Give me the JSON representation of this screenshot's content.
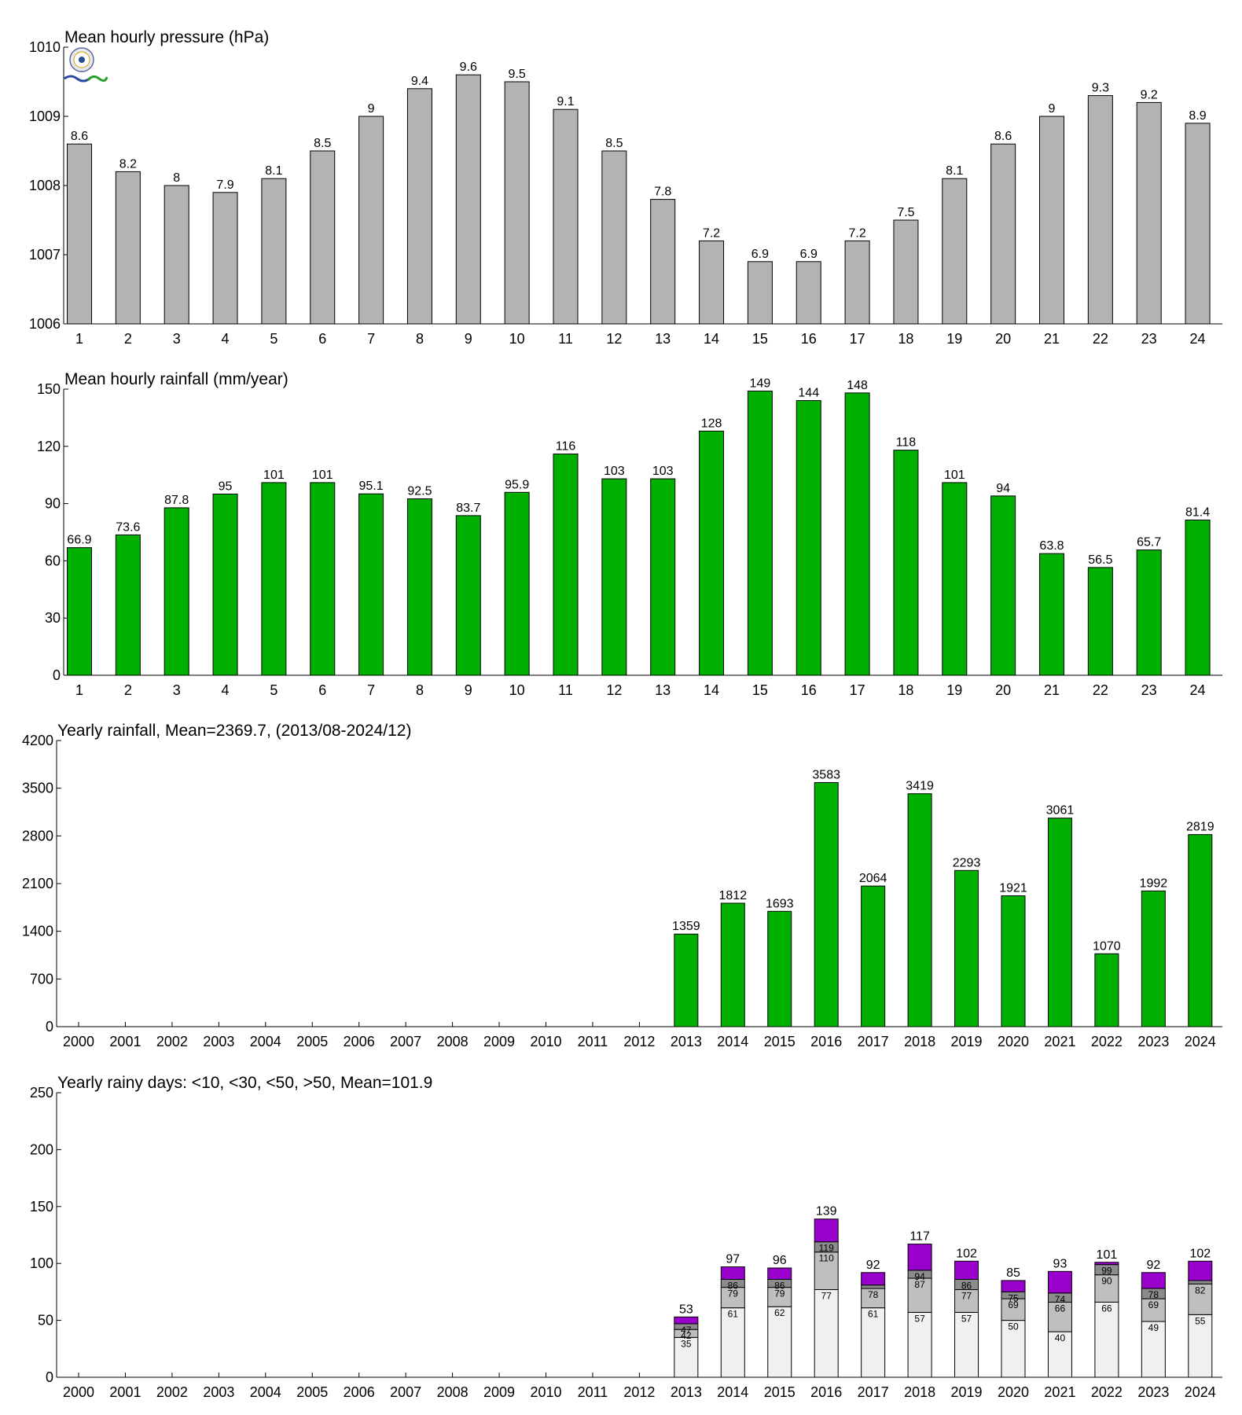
{
  "chart_data": [
    {
      "type": "bar",
      "title": "Mean hourly pressure (hPa)",
      "categories": [
        "1",
        "2",
        "3",
        "4",
        "5",
        "6",
        "7",
        "8",
        "9",
        "10",
        "11",
        "12",
        "13",
        "14",
        "15",
        "16",
        "17",
        "18",
        "19",
        "20",
        "21",
        "22",
        "23",
        "24"
      ],
      "values": [
        1008.6,
        1008.2,
        1008.0,
        1007.9,
        1008.1,
        1008.5,
        1009.0,
        1009.4,
        1009.6,
        1009.5,
        1009.1,
        1008.5,
        1007.8,
        1007.2,
        1006.9,
        1006.9,
        1007.2,
        1007.5,
        1008.1,
        1008.6,
        1009.0,
        1009.3,
        1009.2,
        1008.9
      ],
      "labels": [
        "8.6",
        "8.2",
        "8",
        "7.9",
        "8.1",
        "8.5",
        "9",
        "9.4",
        "9.6",
        "9.5",
        "9.1",
        "8.5",
        "7.8",
        "7.2",
        "6.9",
        "6.9",
        "7.2",
        "7.5",
        "8.1",
        "8.6",
        "9",
        "9.3",
        "9.2",
        "8.9"
      ],
      "ylim": [
        1006,
        1010
      ],
      "yticks": [
        "1006",
        "1007",
        "1008",
        "1009",
        "1010"
      ],
      "color": "#b3b3b3"
    },
    {
      "type": "bar",
      "title": "Mean hourly rainfall (mm/year)",
      "categories": [
        "1",
        "2",
        "3",
        "4",
        "5",
        "6",
        "7",
        "8",
        "9",
        "10",
        "11",
        "12",
        "13",
        "14",
        "15",
        "16",
        "17",
        "18",
        "19",
        "20",
        "21",
        "22",
        "23",
        "24"
      ],
      "values": [
        66.9,
        73.6,
        87.8,
        95,
        101,
        101,
        95.1,
        92.5,
        83.7,
        95.9,
        116,
        103,
        103,
        128,
        149,
        144,
        148,
        118,
        101,
        94,
        63.8,
        56.5,
        65.7,
        81.4
      ],
      "labels": [
        "66.9",
        "73.6",
        "87.8",
        "95",
        "101",
        "101",
        "95.1",
        "92.5",
        "83.7",
        "95.9",
        "116",
        "103",
        "103",
        "128",
        "149",
        "144",
        "148",
        "118",
        "101",
        "94",
        "63.8",
        "56.5",
        "65.7",
        "81.4"
      ],
      "ylim": [
        0,
        150
      ],
      "yticks": [
        "0",
        "30",
        "60",
        "90",
        "120",
        "150"
      ],
      "color": "#00b000"
    },
    {
      "type": "bar",
      "title": "Yearly rainfall, Mean=2369.7, (2013/08-2024/12)",
      "categories": [
        "2000",
        "2001",
        "2002",
        "2003",
        "2004",
        "2005",
        "2006",
        "2007",
        "2008",
        "2009",
        "2010",
        "2011",
        "2012",
        "2013",
        "2014",
        "2015",
        "2016",
        "2017",
        "2018",
        "2019",
        "2020",
        "2021",
        "2022",
        "2023",
        "2024"
      ],
      "values": [
        null,
        null,
        null,
        null,
        null,
        null,
        null,
        null,
        null,
        null,
        null,
        null,
        null,
        1359,
        1812,
        1693,
        3583,
        2064,
        3419,
        2293,
        1921,
        3061,
        1070,
        1992,
        2819
      ],
      "labels": [
        "",
        "",
        "",
        "",
        "",
        "",
        "",
        "",
        "",
        "",
        "",
        "",
        "",
        "1359",
        "1812",
        "1693",
        "3583",
        "2064",
        "3419",
        "2293",
        "1921",
        "3061",
        "1070",
        "1992",
        "2819"
      ],
      "ylim": [
        0,
        4200
      ],
      "yticks": [
        "0",
        "700",
        "1400",
        "2100",
        "2800",
        "3500",
        "4200"
      ],
      "color": "#00b000"
    },
    {
      "type": "bar",
      "stacked": true,
      "title": "Yearly rainy days: <10, <30, <50, >50, Mean=101.9",
      "categories": [
        "2000",
        "2001",
        "2002",
        "2003",
        "2004",
        "2005",
        "2006",
        "2007",
        "2008",
        "2009",
        "2010",
        "2011",
        "2012",
        "2013",
        "2014",
        "2015",
        "2016",
        "2017",
        "2018",
        "2019",
        "2020",
        "2021",
        "2022",
        "2023",
        "2024"
      ],
      "cumulative": [
        null,
        null,
        null,
        null,
        null,
        null,
        null,
        null,
        null,
        null,
        null,
        null,
        null,
        [
          35,
          42,
          47,
          53
        ],
        [
          61,
          79,
          86,
          97
        ],
        [
          62,
          79,
          86,
          96
        ],
        [
          77,
          110,
          119,
          139
        ],
        [
          61,
          78,
          81,
          92
        ],
        [
          57,
          87,
          94,
          117
        ],
        [
          57,
          77,
          86,
          102
        ],
        [
          50,
          69,
          75,
          85
        ],
        [
          40,
          66,
          74,
          93
        ],
        [
          66,
          90,
          99,
          101
        ],
        [
          49,
          69,
          78,
          92
        ],
        [
          55,
          82,
          85,
          102
        ]
      ],
      "segment_labels": [
        null,
        null,
        null,
        null,
        null,
        null,
        null,
        null,
        null,
        null,
        null,
        null,
        null,
        [
          "35",
          "42",
          "47"
        ],
        [
          "61",
          "79",
          "86"
        ],
        [
          "62",
          "79",
          "86"
        ],
        [
          "77",
          "110",
          "119"
        ],
        [
          "61",
          "78",
          ""
        ],
        [
          "57",
          "87",
          "94"
        ],
        [
          "57",
          "77",
          "86"
        ],
        [
          "50",
          "69",
          "75"
        ],
        [
          "40",
          "66",
          "74"
        ],
        [
          "66",
          "90",
          "99"
        ],
        [
          "49",
          "69",
          "78"
        ],
        [
          "55",
          "82",
          ""
        ]
      ],
      "totals": [
        "",
        "",
        "",
        "",
        "",
        "",
        "",
        "",
        "",
        "",
        "",
        "",
        "",
        "53",
        "97",
        "96",
        "139",
        "92",
        "117",
        "102",
        "85",
        "93",
        "101",
        "92",
        "102"
      ],
      "ylim": [
        0,
        250
      ],
      "yticks": [
        "0",
        "50",
        "100",
        "150",
        "200",
        "250"
      ],
      "segment_colors": [
        "#f0f0f0",
        "#bfbfbf",
        "#8c8c8c",
        "#9900cc"
      ]
    }
  ]
}
